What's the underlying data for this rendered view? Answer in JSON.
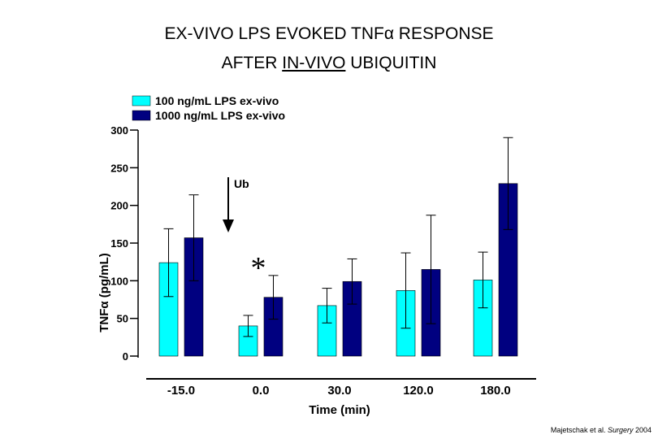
{
  "title": {
    "line1_pre": "EX-VIVO LPS EVOKED TNF",
    "line1_greek": "α",
    "line1_post": " RESPONSE",
    "line2_pre": "AFTER ",
    "line2_underlined": "IN-VIVO",
    "line2_post": " UBIQUITIN"
  },
  "citation": {
    "authors": "Majetschak et al. ",
    "journal": "Surgery",
    "year": " 2004"
  },
  "chart_data": {
    "type": "bar",
    "title": "EX-VIVO LPS EVOKED TNFα RESPONSE AFTER IN-VIVO UBIQUITIN",
    "xlabel": "Time (min)",
    "ylabel": "TNFα (pg/mL)",
    "ylim": [
      0,
      300
    ],
    "yticks": [
      0,
      50,
      100,
      150,
      200,
      250,
      300
    ],
    "categories": [
      "-15.0",
      "0.0",
      "30.0",
      "120.0",
      "180.0"
    ],
    "series": [
      {
        "name": "100 ng/mL LPS ex-vivo",
        "color": "#00ffff",
        "values": [
          124,
          40,
          67,
          87,
          101
        ],
        "errors": [
          45,
          14,
          23,
          50,
          37
        ]
      },
      {
        "name": "1000 ng/mL LPS ex-vivo",
        "color": "#000080",
        "values": [
          157,
          78,
          99,
          115,
          229
        ],
        "errors": [
          57,
          29,
          30,
          72,
          61
        ]
      }
    ],
    "legend": "top",
    "annotations": [
      {
        "text": "Ub",
        "type": "arrow",
        "category": "0.0"
      },
      {
        "text": "*",
        "type": "significance",
        "category": "0.0"
      }
    ],
    "grid": false
  }
}
